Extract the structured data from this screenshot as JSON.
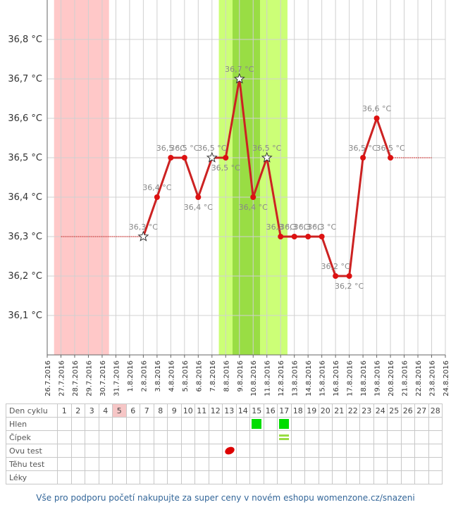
{
  "chart_data": {
    "type": "line",
    "y_tick_labels": [
      "36,1 °C",
      "36,2 °C",
      "36,3 °C",
      "36,4 °C",
      "36,5 °C",
      "36,6 °C",
      "36,7 °C",
      "36,8 °C"
    ],
    "y_ticks": [
      36.1,
      36.2,
      36.3,
      36.4,
      36.5,
      36.6,
      36.7,
      36.8
    ],
    "ylim": [
      36.0,
      36.9
    ],
    "x_dates": [
      "26.7.2016",
      "27.7.2016",
      "28.7.2016",
      "29.7.2016",
      "30.7.2016",
      "31.7.2016",
      "1.8.2016",
      "2.8.2016",
      "3.8.2016",
      "4.8.2016",
      "5.8.2016",
      "6.8.2016",
      "7.8.2016",
      "8.8.2016",
      "9.8.2016",
      "10.8.2016",
      "11.8.2016",
      "12.8.2016",
      "13.8.2016",
      "14.8.2016",
      "15.8.2016",
      "16.8.2016",
      "17.8.2016",
      "18.8.2016",
      "19.8.2016",
      "20.8.2016",
      "21.8.2016",
      "22.8.2016",
      "23.8.2016",
      "24.8.2016"
    ],
    "series": [
      {
        "points": [
          {
            "x": "2.8.2016",
            "y": 36.3,
            "label": "36,3 °C",
            "star": true
          },
          {
            "x": "3.8.2016",
            "y": 36.4,
            "label": "36,4 °C"
          },
          {
            "x": "4.8.2016",
            "y": 36.5,
            "label": "36,5 °C"
          },
          {
            "x": "5.8.2016",
            "y": 36.5,
            "label": "36,5 °C"
          },
          {
            "x": "6.8.2016",
            "y": 36.4,
            "label": "36,4 °C"
          },
          {
            "x": "7.8.2016",
            "y": 36.5,
            "label": "36,5 °C",
            "star": true
          },
          {
            "x": "8.8.2016",
            "y": 36.5,
            "label": "36,5 °C"
          },
          {
            "x": "9.8.2016",
            "y": 36.7,
            "label": "36,7 °C",
            "star": true
          },
          {
            "x": "10.8.2016",
            "y": 36.4,
            "label": "36,4 °C"
          },
          {
            "x": "11.8.2016",
            "y": 36.5,
            "label": "36,5 °C",
            "star": true
          },
          {
            "x": "12.8.2016",
            "y": 36.3,
            "label": "36,3 °C"
          },
          {
            "x": "13.8.2016",
            "y": 36.3,
            "label": "36,3 °C"
          },
          {
            "x": "14.8.2016",
            "y": 36.3,
            "label": "36,3 °C"
          },
          {
            "x": "15.8.2016",
            "y": 36.3,
            "label": "36,3 °C"
          },
          {
            "x": "16.8.2016",
            "y": 36.2,
            "label": "36,2 °C"
          },
          {
            "x": "17.8.2016",
            "y": 36.2,
            "label": "36,2 °C"
          },
          {
            "x": "18.8.2016",
            "y": 36.5,
            "label": "36,5 °C"
          },
          {
            "x": "19.8.2016",
            "y": 36.6,
            "label": "36,6 °C"
          },
          {
            "x": "20.8.2016",
            "y": 36.5,
            "label": "36,5 °C"
          }
        ]
      }
    ],
    "reference_lines": [
      {
        "y": 36.3,
        "from": "27.7.2016",
        "to": "2.8.2016"
      },
      {
        "y": 36.5,
        "from": "20.8.2016",
        "to": "23.8.2016"
      }
    ],
    "bands": [
      {
        "from": "26.7.2016",
        "to": "30.7.2016",
        "color": "#ffc8c8"
      },
      {
        "from": "7.8.2016",
        "to": "12.8.2016",
        "color": "#ccff77"
      },
      {
        "from": "8.8.2016",
        "to": "10.8.2016",
        "color": "#99dd44"
      }
    ],
    "line_color": "#cc2222",
    "grid": true,
    "legend": "none"
  },
  "table": {
    "header_label": "Den cyklu",
    "days": [
      "1",
      "2",
      "3",
      "4",
      "5",
      "6",
      "7",
      "8",
      "9",
      "10",
      "11",
      "12",
      "13",
      "14",
      "15",
      "16",
      "17",
      "18",
      "19",
      "20",
      "21",
      "22",
      "23",
      "24",
      "25",
      "26",
      "27",
      "28"
    ],
    "highlight_day": "5",
    "rows": [
      {
        "label": "Hlen",
        "green_days": [
          "15",
          "17"
        ]
      },
      {
        "label": "Čípek",
        "lines_days": [
          "17"
        ]
      },
      {
        "label": "Ovu test",
        "oval_days": [
          "13"
        ]
      },
      {
        "label": "Těhu test"
      },
      {
        "label": "Léky"
      }
    ]
  },
  "footer_text": "Vše pro podporu početí nakupujte za super ceny v novém eshopu womenzone.cz/snazeni"
}
